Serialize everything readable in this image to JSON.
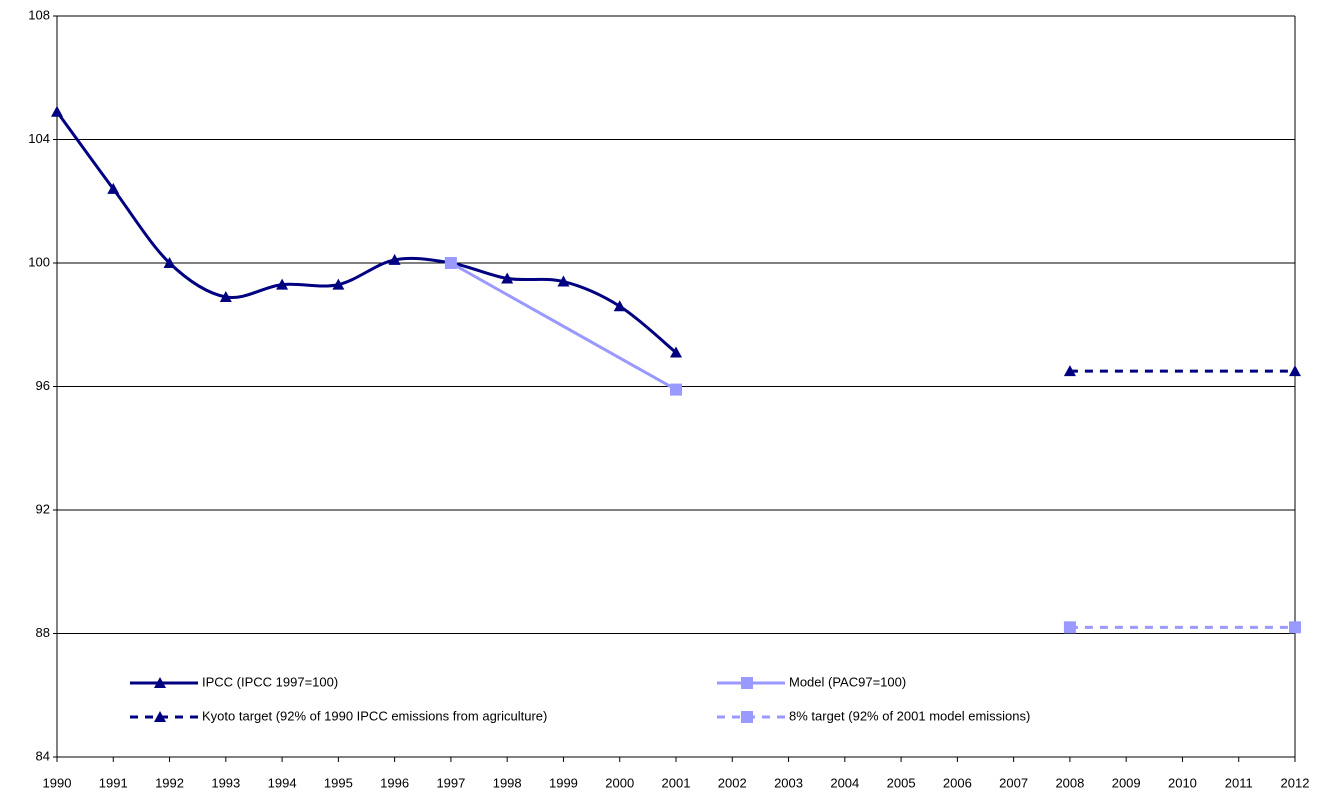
{
  "chart_data": {
    "type": "line",
    "xlim": [
      1990,
      2012
    ],
    "xticks": [
      1990,
      1991,
      1992,
      1993,
      1994,
      1995,
      1996,
      1997,
      1998,
      1999,
      2000,
      2001,
      2002,
      2003,
      2004,
      2005,
      2006,
      2007,
      2008,
      2009,
      2010,
      2011,
      2012
    ],
    "ylim": [
      84,
      108
    ],
    "yticks": [
      84,
      88,
      92,
      96,
      100,
      104,
      108
    ],
    "grid": true,
    "legend": "lower left",
    "series": [
      {
        "name": "IPCC (IPCC 1997=100)",
        "color": "#000080",
        "marker": "triangle",
        "dash": false,
        "smooth": true,
        "x": [
          1990,
          1991,
          1992,
          1993,
          1994,
          1995,
          1996,
          1997,
          1998,
          1999,
          2000,
          2001
        ],
        "values": [
          104.9,
          102.4,
          100.0,
          98.9,
          99.3,
          99.3,
          100.1,
          100.0,
          99.5,
          99.4,
          98.6,
          97.1
        ]
      },
      {
        "name": "Model (PAC97=100)",
        "color": "#9999ff",
        "marker": "square",
        "dash": false,
        "smooth": false,
        "x": [
          1997,
          2001
        ],
        "values": [
          100.0,
          95.9
        ]
      },
      {
        "name": "Kyoto target (92% of 1990 IPCC emissions from agriculture)",
        "color": "#000080",
        "marker": "triangle",
        "dash": true,
        "smooth": false,
        "x": [
          2008,
          2012
        ],
        "values": [
          96.5,
          96.5
        ]
      },
      {
        "name": "8% target (92% of 2001 model emissions)",
        "color": "#9999ff",
        "marker": "square",
        "dash": true,
        "smooth": false,
        "x": [
          2008,
          2012
        ],
        "values": [
          88.2,
          88.2
        ]
      }
    ]
  }
}
